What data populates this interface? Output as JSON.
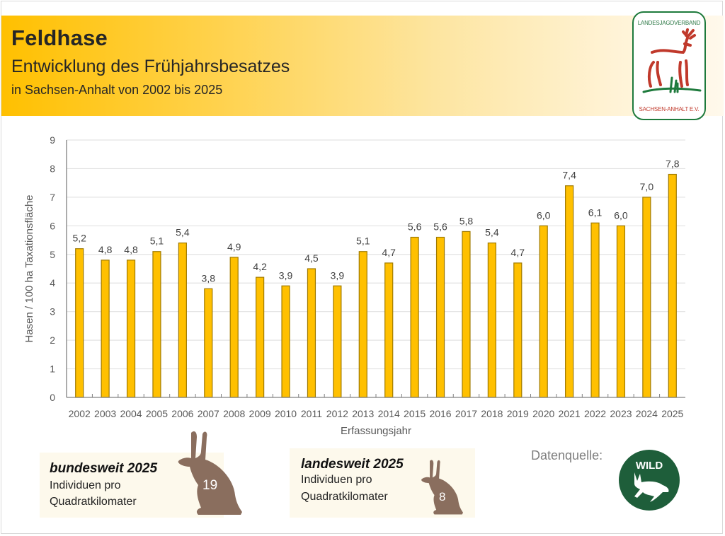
{
  "header": {
    "title": "Feldhase",
    "subtitle": "Entwicklung des Frühjahrsbesatzes",
    "subsubtitle": "in Sachsen-Anhalt von 2002 bis 2025"
  },
  "logo": {
    "top_text": "LANDESJAGDVERBAND",
    "bottom_text": "SACHSEN-ANHALT E.V.",
    "border_color": "#1e7a3c",
    "deer_color": "#c0392b",
    "grass_color": "#1e7a3c"
  },
  "chart_data": {
    "type": "bar",
    "title": "Feldhase – Entwicklung des Frühjahrsbesatzes",
    "xlabel": "Erfassungsjahr",
    "ylabel": "Hasen / 100 ha Taxationsfläche",
    "ylim": [
      0,
      9
    ],
    "yticks": [
      0,
      1,
      2,
      3,
      4,
      5,
      6,
      7,
      8,
      9
    ],
    "grid": true,
    "bar_color": "#ffc000",
    "bar_edge_color": "#a07a00",
    "categories": [
      "2002",
      "2003",
      "2004",
      "2005",
      "2006",
      "2007",
      "2008",
      "2009",
      "2010",
      "2011",
      "2012",
      "2013",
      "2014",
      "2015",
      "2016",
      "2017",
      "2018",
      "2019",
      "2020",
      "2021",
      "2022",
      "2023",
      "2024",
      "2025"
    ],
    "values": [
      5.2,
      4.8,
      4.8,
      5.1,
      5.4,
      3.8,
      4.9,
      4.2,
      3.9,
      4.5,
      3.9,
      5.1,
      4.7,
      5.6,
      5.6,
      5.8,
      5.4,
      4.7,
      6.0,
      7.4,
      6.1,
      6.0,
      7.0,
      7.8
    ],
    "value_labels": [
      "5,2",
      "4,8",
      "4,8",
      "5,1",
      "5,4",
      "3,8",
      "4,9",
      "4,2",
      "3,9",
      "4,5",
      "3,9",
      "5,1",
      "4,7",
      "5,6",
      "5,6",
      "5,8",
      "5,4",
      "4,7",
      "6,0",
      "7,4",
      "6,1",
      "6,0",
      "7,0",
      "7,8"
    ]
  },
  "cards": {
    "federal": {
      "title": "bundesweit 2025",
      "line1": "Individuen pro",
      "line2": "Quadratkilomater",
      "value": "19"
    },
    "state": {
      "title": "landesweit 2025",
      "line1": "Individuen pro",
      "line2": "Quadratkilomater",
      "value": "8"
    },
    "hare_color": "#8a6e5e"
  },
  "source": {
    "label": "Datenquelle:",
    "badge_text": "WILD",
    "badge_color": "#1e5e3a"
  }
}
